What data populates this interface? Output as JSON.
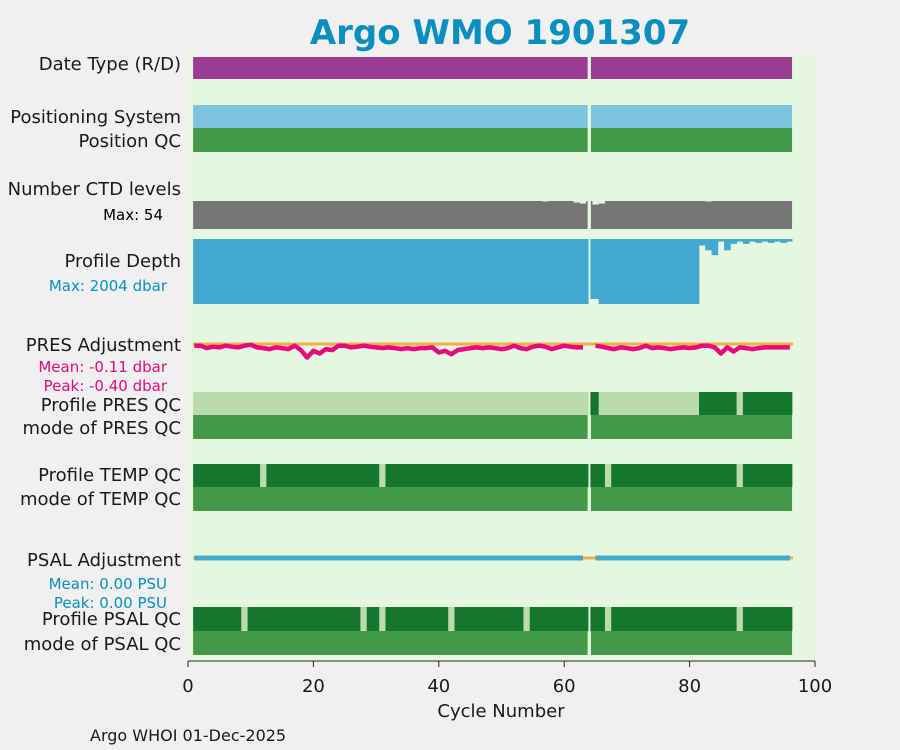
{
  "chart_data": {
    "type": "timeline",
    "title": "Argo WMO 1901307",
    "xlabel": "Cycle Number",
    "xlim": [
      0,
      100
    ],
    "xticks": [
      "0",
      "20",
      "40",
      "60",
      "80",
      "100"
    ],
    "xtick_values": [
      0,
      20,
      40,
      60,
      80,
      100
    ],
    "footer": "Argo WHOI 01-Dec-2025",
    "cycle_range": [
      1,
      96
    ],
    "missing_cycles": [
      64
    ],
    "rows": {
      "date_type": {
        "label": "Date Type (R/D)"
      },
      "positioning": {
        "label": "Positioning System"
      },
      "position_qc": {
        "label": "Position QC"
      },
      "ctd_levels": {
        "label": "Number CTD levels",
        "max_text": "Max: 54",
        "max": 54,
        "dips": [
          {
            "cycle": 57,
            "value": 53
          },
          {
            "cycle": 62,
            "value": 51
          },
          {
            "cycle": 63,
            "value": 49
          },
          {
            "cycle": 65,
            "value": 47
          },
          {
            "cycle": 66,
            "value": 49
          },
          {
            "cycle": 83,
            "value": 53
          }
        ]
      },
      "profile_depth": {
        "label": "Profile Depth",
        "max_text": "Max: 2004 dbar",
        "max": 2004,
        "shallow": [
          {
            "cycle": 65,
            "value": 1850
          },
          {
            "cycle": 82,
            "value": 200
          },
          {
            "cycle": 83,
            "value": 350
          },
          {
            "cycle": 84,
            "value": 500
          },
          {
            "cycle": 85,
            "value": 80
          },
          {
            "cycle": 86,
            "value": 350
          },
          {
            "cycle": 87,
            "value": 150
          },
          {
            "cycle": 88,
            "value": 80
          },
          {
            "cycle": 89,
            "value": 150
          },
          {
            "cycle": 90,
            "value": 80
          },
          {
            "cycle": 91,
            "value": 120
          },
          {
            "cycle": 92,
            "value": 80
          },
          {
            "cycle": 93,
            "value": 120
          },
          {
            "cycle": 94,
            "value": 80
          },
          {
            "cycle": 95,
            "value": 120
          },
          {
            "cycle": 96,
            "value": 80
          }
        ]
      },
      "pres_adjustment": {
        "label": "PRES Adjustment",
        "mean_text": "Mean: -0.11 dbar",
        "peak_text": "Peak: -0.40 dbar",
        "values": [
          -0.05,
          -0.05,
          -0.12,
          -0.08,
          -0.1,
          -0.05,
          -0.08,
          -0.1,
          -0.05,
          -0.02,
          -0.1,
          -0.12,
          -0.15,
          -0.1,
          -0.12,
          -0.15,
          -0.05,
          -0.18,
          -0.4,
          -0.2,
          -0.28,
          -0.15,
          -0.18,
          -0.05,
          -0.05,
          -0.1,
          -0.08,
          -0.05,
          -0.08,
          -0.1,
          -0.12,
          -0.1,
          -0.12,
          -0.15,
          -0.12,
          -0.15,
          -0.12,
          -0.12,
          -0.1,
          -0.25,
          -0.2,
          -0.3,
          -0.18,
          -0.15,
          -0.12,
          -0.1,
          -0.12,
          -0.1,
          -0.12,
          -0.15,
          -0.12,
          -0.05,
          -0.12,
          -0.15,
          -0.08,
          -0.05,
          -0.08,
          -0.15,
          -0.1,
          -0.05,
          -0.08,
          -0.1,
          -0.1,
          null,
          -0.05,
          -0.08,
          -0.12,
          -0.15,
          -0.1,
          -0.12,
          -0.15,
          -0.12,
          -0.05,
          -0.12,
          -0.1,
          -0.12,
          -0.15,
          -0.12,
          -0.1,
          -0.12,
          -0.1,
          -0.05,
          -0.05,
          -0.1,
          -0.28,
          -0.1,
          -0.22,
          -0.1,
          -0.12,
          -0.15,
          -0.12,
          -0.1,
          -0.1,
          -0.1,
          -0.1,
          -0.1
        ]
      },
      "profile_pres_qc": {
        "label": "Profile PRES QC",
        "segments": [
          {
            "from": 1,
            "to": 63,
            "grade": "light"
          },
          {
            "from": 65,
            "to": 65,
            "grade": "dark"
          },
          {
            "from": 66,
            "to": 81,
            "grade": "light"
          },
          {
            "from": 82,
            "to": 87,
            "grade": "dark"
          },
          {
            "from": 88,
            "to": 88,
            "grade": "light"
          },
          {
            "from": 89,
            "to": 96,
            "grade": "dark"
          }
        ]
      },
      "mode_pres_qc": {
        "label": "mode of PRES QC"
      },
      "profile_temp_qc": {
        "label": "Profile TEMP QC",
        "segments": [
          {
            "from": 1,
            "to": 11,
            "grade": "dark"
          },
          {
            "from": 12,
            "to": 12,
            "grade": "light"
          },
          {
            "from": 13,
            "to": 30,
            "grade": "dark"
          },
          {
            "from": 31,
            "to": 31,
            "grade": "light"
          },
          {
            "from": 32,
            "to": 63,
            "grade": "dark"
          },
          {
            "from": 65,
            "to": 66,
            "grade": "dark"
          },
          {
            "from": 67,
            "to": 67,
            "grade": "light"
          },
          {
            "from": 68,
            "to": 87,
            "grade": "dark"
          },
          {
            "from": 88,
            "to": 88,
            "grade": "light"
          },
          {
            "from": 89,
            "to": 96,
            "grade": "dark"
          }
        ]
      },
      "mode_temp_qc": {
        "label": "mode of TEMP QC"
      },
      "psal_adjustment": {
        "label": "PSAL Adjustment",
        "mean_text": "Mean: 0.00 PSU",
        "peak_text": "Peak: 0.00 PSU"
      },
      "profile_psal_qc": {
        "label": "Profile PSAL QC",
        "segments": [
          {
            "from": 1,
            "to": 8,
            "grade": "dark"
          },
          {
            "from": 9,
            "to": 9,
            "grade": "light"
          },
          {
            "from": 10,
            "to": 27,
            "grade": "dark"
          },
          {
            "from": 28,
            "to": 28,
            "grade": "light"
          },
          {
            "from": 29,
            "to": 30,
            "grade": "dark"
          },
          {
            "from": 31,
            "to": 31,
            "grade": "light"
          },
          {
            "from": 32,
            "to": 41,
            "grade": "dark"
          },
          {
            "from": 42,
            "to": 42,
            "grade": "light"
          },
          {
            "from": 43,
            "to": 53,
            "grade": "dark"
          },
          {
            "from": 54,
            "to": 54,
            "grade": "light"
          },
          {
            "from": 55,
            "to": 63,
            "grade": "dark"
          },
          {
            "from": 65,
            "to": 66,
            "grade": "dark"
          },
          {
            "from": 67,
            "to": 67,
            "grade": "light"
          },
          {
            "from": 68,
            "to": 87,
            "grade": "dark"
          },
          {
            "from": 88,
            "to": 88,
            "grade": "light"
          },
          {
            "from": 89,
            "to": 96,
            "grade": "dark"
          }
        ]
      },
      "mode_psal_qc": {
        "label": "mode of PSAL QC"
      }
    },
    "colors": {
      "title": "#0b8fc0",
      "plot_bg": "#e5f8df",
      "date_type": "#9b3c96",
      "positioning": "#7ec4de",
      "qc_mid": "#449a46",
      "qc_dark": "#15762c",
      "qc_light": "#bcdbad",
      "ctd": "#757575",
      "depth": "#42a9cf",
      "pres_line": "#e8097f",
      "pres_zero": "#f2ae45",
      "psal_line": "#42a9cf",
      "psal_zero": "#f2ae45",
      "depth_text": "#0b8fc0",
      "pres_text": "#e8097f",
      "psal_text": "#0b8fc0"
    }
  }
}
